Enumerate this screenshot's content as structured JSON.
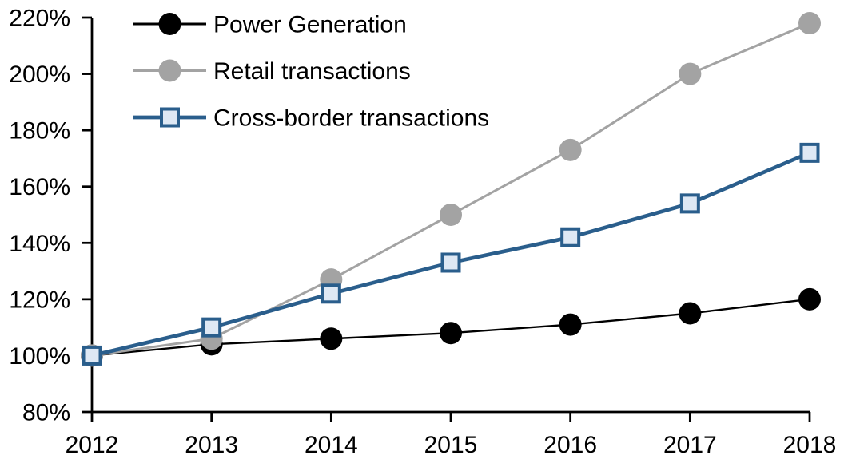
{
  "chart_data": {
    "type": "line",
    "title": "",
    "categories": [
      "2012",
      "2013",
      "2014",
      "2015",
      "2016",
      "2017",
      "2018"
    ],
    "series": [
      {
        "name": "Power Generation",
        "values": [
          100,
          104,
          106,
          108,
          111,
          115,
          120
        ],
        "color": "#000000",
        "marker": "circle",
        "marker_fill": "#000000",
        "line_width": 2.4
      },
      {
        "name": "Retail transactions",
        "values": [
          100,
          106,
          127,
          150,
          173,
          200,
          218
        ],
        "color": "#A3A3A3",
        "marker": "circle",
        "marker_fill": "#A3A3A3",
        "line_width": 3
      },
      {
        "name": "Cross-border transactions",
        "values": [
          100,
          110,
          122,
          133,
          142,
          154,
          172
        ],
        "color": "#2A5E8C",
        "marker": "square",
        "marker_fill": "#DEE8F4",
        "line_width": 4.7
      }
    ],
    "xlabel": "",
    "ylabel": "",
    "ylim": [
      80,
      220
    ],
    "ytick_step": 20,
    "ytick_suffix": "%",
    "grid": false,
    "legend_position": "top-left",
    "axis_color": "#000000",
    "background_color": "#FFFFFF"
  }
}
